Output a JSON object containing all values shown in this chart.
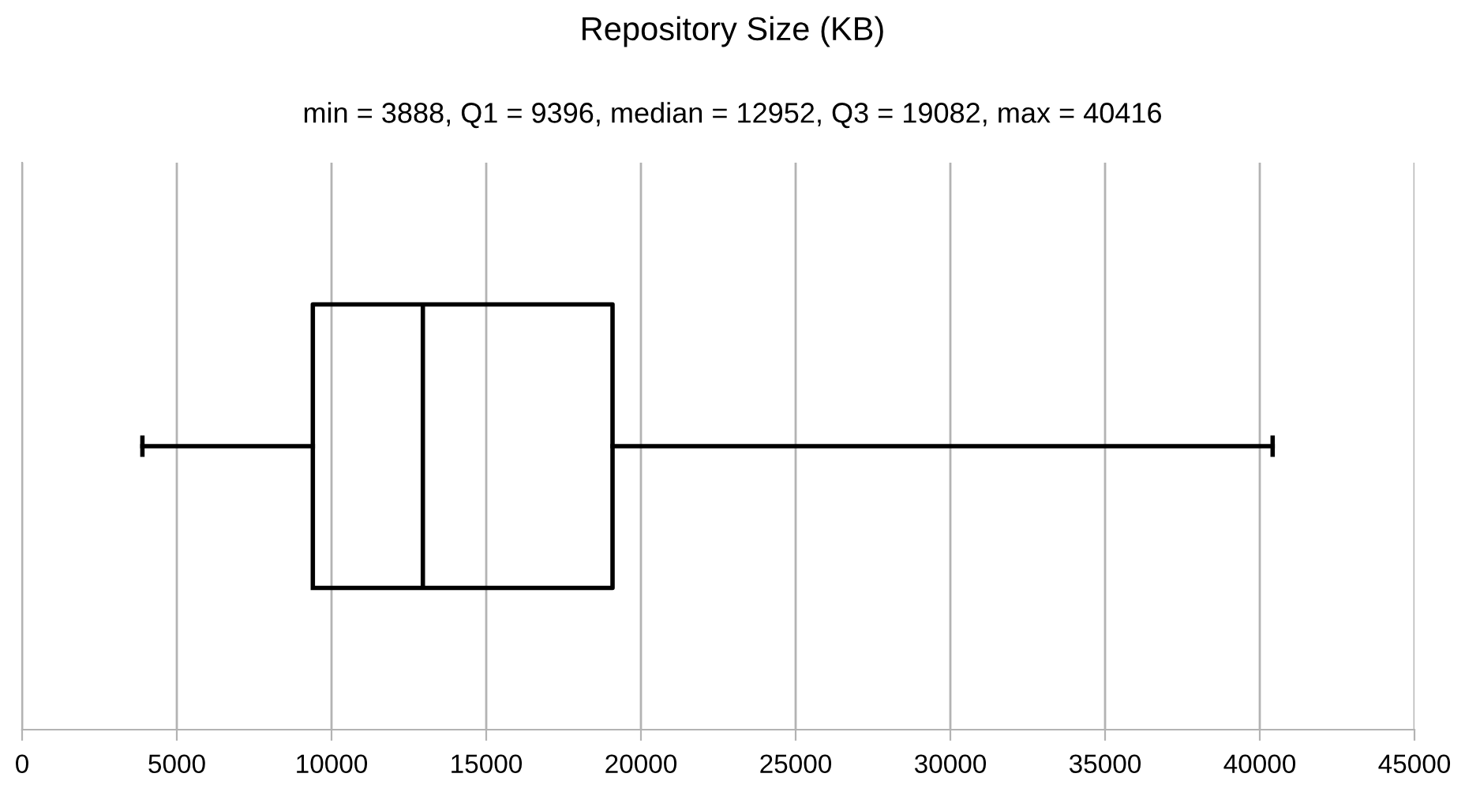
{
  "chart_data": {
    "type": "box",
    "orientation": "horizontal",
    "title": "Repository Size (KB)",
    "subtitle": "min = 3888, Q1 = 9396, median = 12952, Q3 = 19082, max = 40416",
    "categories": [
      null
    ],
    "boxes": [
      {
        "low": 3888,
        "q1": 9396,
        "median": 12952,
        "q3": 19082,
        "high": 40416
      }
    ],
    "color": "#000000",
    "xlim": [
      0,
      45000
    ],
    "xticks": [
      0,
      5000,
      10000,
      15000,
      20000,
      25000,
      30000,
      35000,
      40000,
      45000
    ],
    "grid": "x"
  }
}
